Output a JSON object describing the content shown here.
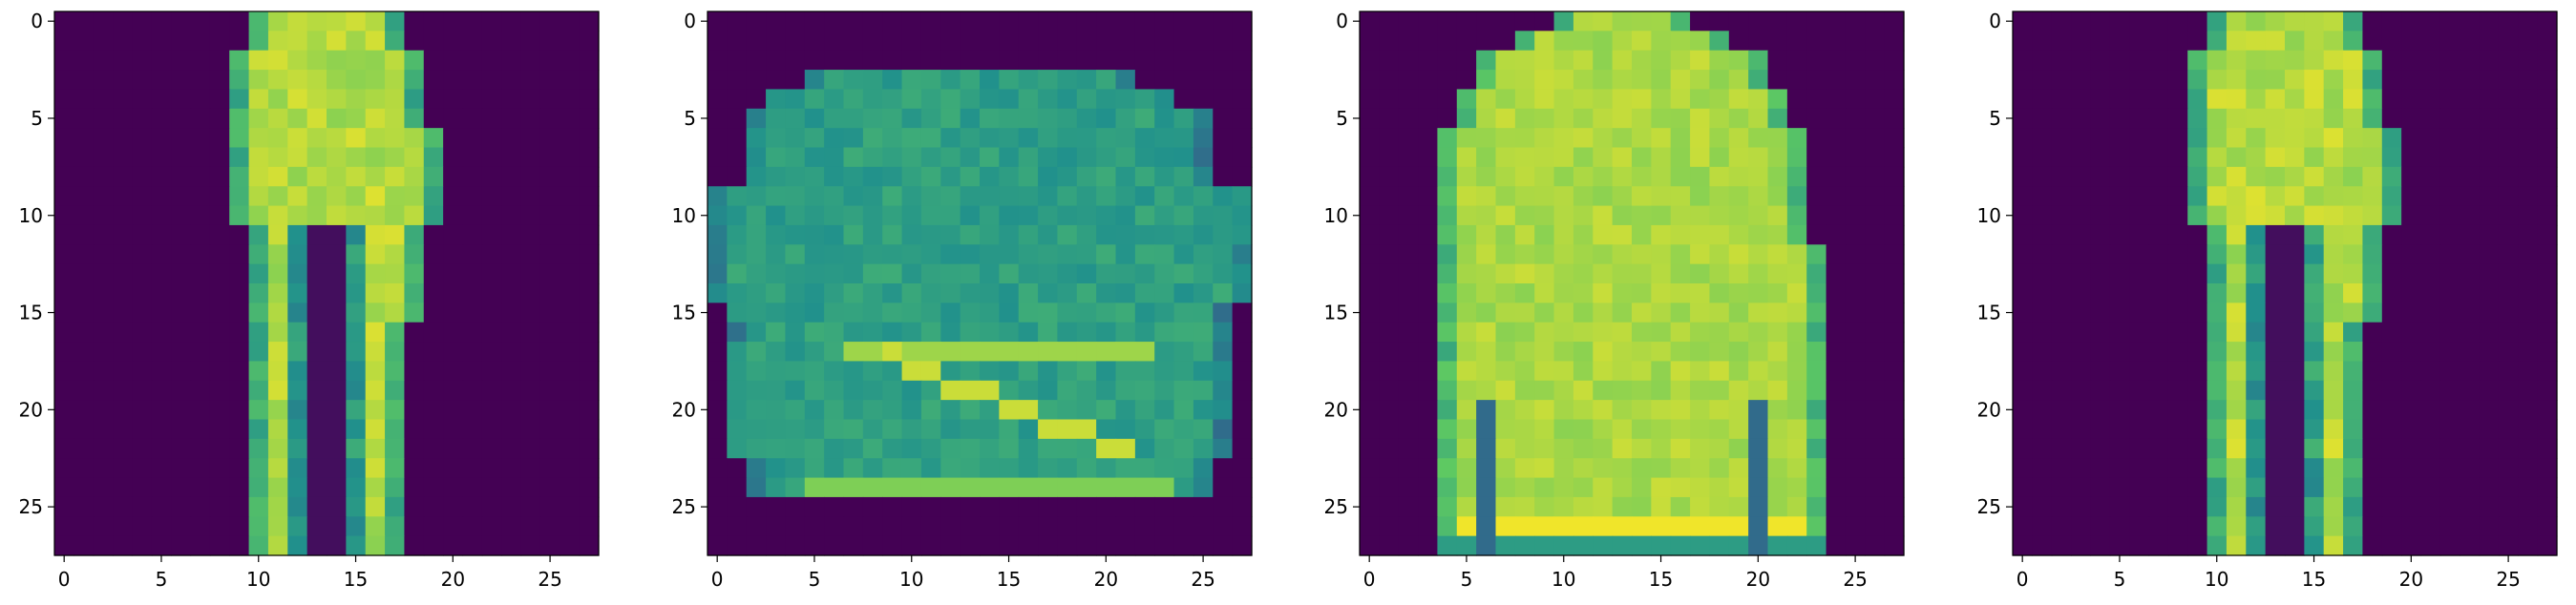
{
  "colormap": {
    "name": "viridis",
    "stops": [
      "#440154",
      "#3b528b",
      "#21918c",
      "#5ec962",
      "#fde725"
    ]
  },
  "chart_data": [
    {
      "type": "heatmap",
      "subject": "trousers",
      "grid_size": 28,
      "x_ticks": [
        0,
        5,
        10,
        15,
        20,
        25
      ],
      "y_ticks": [
        0,
        5,
        10,
        15,
        20,
        25
      ],
      "x_tick_labels": [
        "0",
        "5",
        "10",
        "15",
        "20",
        "25"
      ],
      "y_tick_labels": [
        "0",
        "5",
        "10",
        "15",
        "20",
        "25"
      ]
    },
    {
      "type": "heatmap",
      "subject": "bag",
      "grid_size": 28,
      "x_ticks": [
        0,
        5,
        10,
        15,
        20,
        25
      ],
      "y_ticks": [
        0,
        5,
        10,
        15,
        20,
        25
      ],
      "x_tick_labels": [
        "0",
        "5",
        "10",
        "15",
        "20",
        "25"
      ],
      "y_tick_labels": [
        "0",
        "5",
        "10",
        "15",
        "20",
        "25"
      ]
    },
    {
      "type": "heatmap",
      "subject": "pullover",
      "grid_size": 28,
      "x_ticks": [
        0,
        5,
        10,
        15,
        20,
        25
      ],
      "y_ticks": [
        0,
        5,
        10,
        15,
        20,
        25
      ],
      "x_tick_labels": [
        "0",
        "5",
        "10",
        "15",
        "20",
        "25"
      ],
      "y_tick_labels": [
        "0",
        "5",
        "10",
        "15",
        "20",
        "25"
      ]
    },
    {
      "type": "heatmap",
      "subject": "trousers",
      "grid_size": 28,
      "x_ticks": [
        0,
        5,
        10,
        15,
        20,
        25
      ],
      "y_ticks": [
        0,
        5,
        10,
        15,
        20,
        25
      ],
      "x_tick_labels": [
        "0",
        "5",
        "10",
        "15",
        "20",
        "25"
      ],
      "y_tick_labels": [
        "0",
        "5",
        "10",
        "15",
        "20",
        "25"
      ]
    }
  ]
}
